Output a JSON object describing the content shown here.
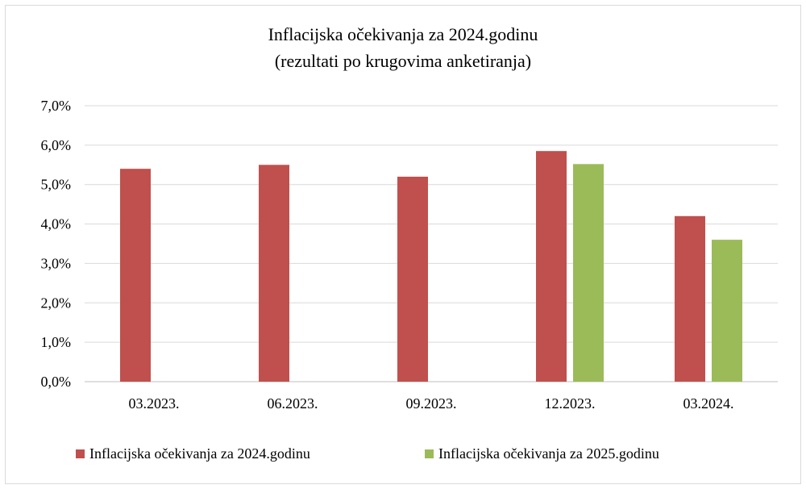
{
  "chart_data": {
    "type": "bar",
    "title": "Inflacijska očekivanja za 2024.godinu",
    "subtitle": "(rezultati po krugovima anketiranja)",
    "xlabel": "",
    "ylabel": "",
    "ylim": [
      0,
      7
    ],
    "y_ticks": [
      0,
      1,
      2,
      3,
      4,
      5,
      6,
      7
    ],
    "y_tick_labels": [
      "0,0%",
      "1,0%",
      "2,0%",
      "3,0%",
      "4,0%",
      "5,0%",
      "6,0%",
      "7,0%"
    ],
    "grid": true,
    "legend_position": "bottom",
    "categories": [
      "03.2023.",
      "06.2023.",
      "09.2023.",
      "12.2023.",
      "03.2024."
    ],
    "series": [
      {
        "name": "Inflacijska očekivanja za 2024.godinu",
        "color": "#c0504d",
        "values": [
          5.4,
          5.5,
          5.2,
          5.85,
          4.2
        ]
      },
      {
        "name": "Inflacijska očekivanja za 2025.godinu",
        "color": "#9bbb59",
        "values": [
          null,
          null,
          null,
          5.52,
          3.6
        ]
      }
    ]
  }
}
